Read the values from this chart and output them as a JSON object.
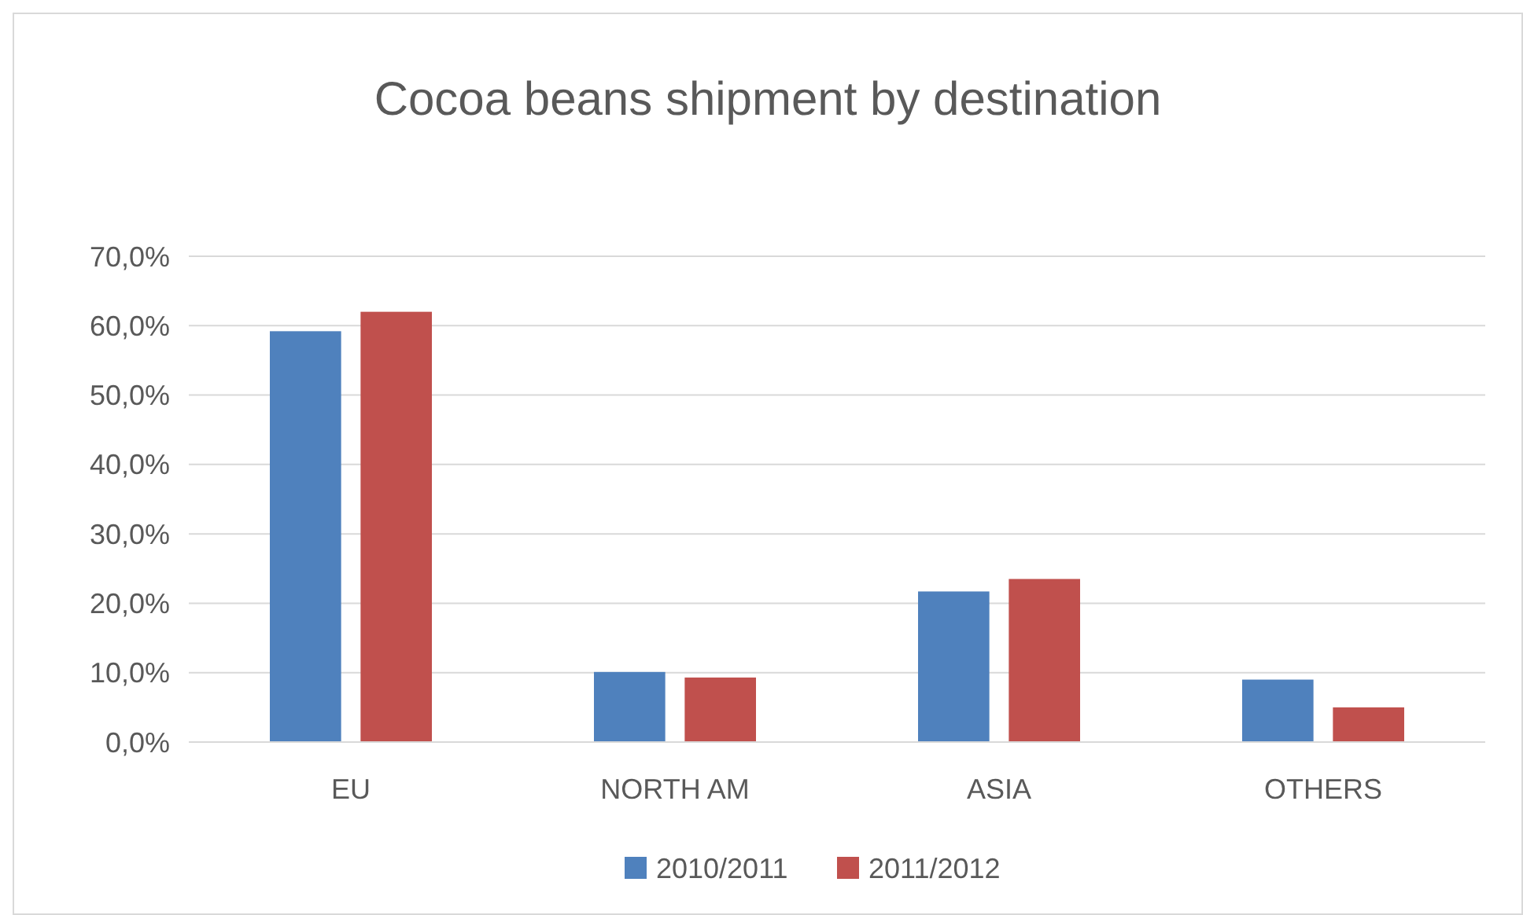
{
  "chart_data": {
    "type": "bar",
    "title": "Cocoa beans shipment by destination",
    "categories": [
      "EU",
      "NORTH AM",
      "ASIA",
      "OTHERS"
    ],
    "series": [
      {
        "name": "2010/2011",
        "color": "#4f81bd",
        "values": [
          59.2,
          10.1,
          21.7,
          9.0
        ]
      },
      {
        "name": "2011/2012",
        "color": "#c0504d",
        "values": [
          62.0,
          9.3,
          23.5,
          5.0
        ]
      }
    ],
    "ylim": [
      0,
      70
    ],
    "yticks": [
      {
        "value": 0,
        "label": "0,0%"
      },
      {
        "value": 10,
        "label": "10,0%"
      },
      {
        "value": 20,
        "label": "20,0%"
      },
      {
        "value": 30,
        "label": "30,0%"
      },
      {
        "value": 40,
        "label": "40,0%"
      },
      {
        "value": 50,
        "label": "50,0%"
      },
      {
        "value": 60,
        "label": "60,0%"
      },
      {
        "value": 70,
        "label": "70,0%"
      }
    ],
    "grid": "y",
    "legend": "bottom"
  }
}
